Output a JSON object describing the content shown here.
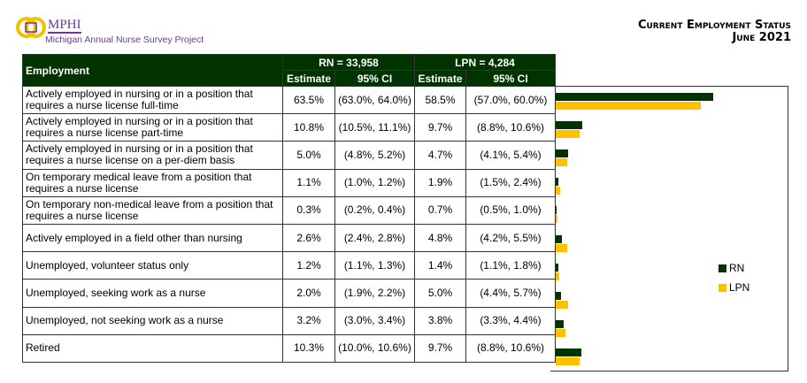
{
  "logo": {
    "name": "MPHI",
    "subtitle": "Michigan Annual Nurse Survey Project"
  },
  "title": {
    "line1": "Current Employment Status",
    "line2": "June 2021"
  },
  "colors": {
    "RN": "#003300",
    "LPN": "#ffc000"
  },
  "table": {
    "col_header": "Employment",
    "rn_header": "RN = 33,958",
    "lpn_header": "LPN = 4,284",
    "est": "Estimate",
    "ci": "95% CI"
  },
  "chart_data": {
    "type": "bar",
    "orientation": "horizontal",
    "categories": [
      "Actively employed in nursing or in a position that requires a nurse license full-time",
      "Actively employed in nursing or in a position that requires a nurse license part-time",
      "Actively employed in nursing or in a position that requires a nurse license on a per-diem basis",
      "On temporary medical leave from a position that requires a nurse license",
      "On temporary non-medical leave from a position that requires a nurse license",
      "Actively employed in a field other than nursing",
      "Unemployed, volunteer status only",
      "Unemployed, seeking work as a nurse",
      "Unemployed, not seeking work as a nurse",
      "Retired"
    ],
    "series": [
      {
        "name": "RN",
        "values": [
          63.5,
          10.8,
          5.0,
          1.1,
          0.3,
          2.6,
          1.2,
          2.0,
          3.2,
          10.3
        ],
        "labels": [
          "63.5%",
          "10.8%",
          "5.0%",
          "1.1%",
          "0.3%",
          "2.6%",
          "1.2%",
          "2.0%",
          "3.2%",
          "10.3%"
        ],
        "ci": [
          "(63.0%, 64.0%)",
          "(10.5%, 11.1%)",
          "(4.8%, 5.2%)",
          "(1.0%, 1.2%)",
          "(0.2%, 0.4%)",
          "(2.4%, 2.8%)",
          "(1.1%, 1.3%)",
          "(1.9%, 2.2%)",
          "(3.0%, 3.4%)",
          "(10.0%, 10.6%)"
        ]
      },
      {
        "name": "LPN",
        "values": [
          58.5,
          9.7,
          4.7,
          1.9,
          0.7,
          4.8,
          1.4,
          5.0,
          3.8,
          9.7
        ],
        "labels": [
          "58.5%",
          "9.7%",
          "4.7%",
          "1.9%",
          "0.7%",
          "4.8%",
          "1.4%",
          "5.0%",
          "3.8%",
          "9.7%"
        ],
        "ci": [
          "(57.0%, 60.0%)",
          "(8.8%, 10.6%)",
          "(4.1%, 5.4%)",
          "(1.5%, 2.4%)",
          "(0.5%, 1.0%)",
          "(4.2%, 5.5%)",
          "(1.1%, 1.8%)",
          "(4.4%, 5.7%)",
          "(3.3%, 4.4%)",
          "(8.8%, 10.6%)"
        ]
      }
    ],
    "legend": "right",
    "grid": false
  }
}
